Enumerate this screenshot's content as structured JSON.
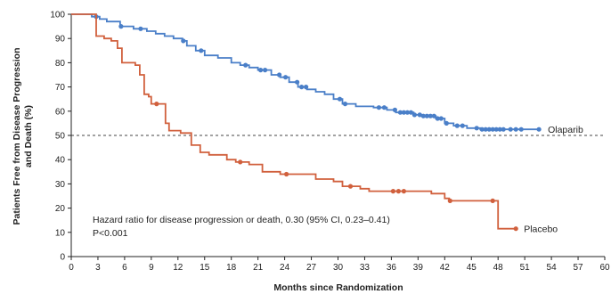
{
  "chart_data": {
    "type": "line",
    "step": true,
    "xlabel": "Months since Randomization",
    "ylabel_lines": [
      "Patients Free from Disease Progression",
      "and Death (%)"
    ],
    "xlim": [
      0,
      60
    ],
    "ylim": [
      0,
      100
    ],
    "x_ticks": [
      0,
      3,
      6,
      9,
      12,
      15,
      18,
      21,
      24,
      27,
      30,
      33,
      36,
      39,
      42,
      45,
      48,
      51,
      54,
      57,
      60
    ],
    "y_ticks": [
      0,
      10,
      20,
      30,
      40,
      50,
      60,
      70,
      80,
      90,
      100
    ],
    "reference_line": {
      "y": 50,
      "style": "dashed"
    },
    "annotation_lines": [
      "Hazard ratio for disease progression or death, 0.30 (95% CI, 0.23–0.41)",
      "P<0.001"
    ],
    "series": [
      {
        "name": "Olaparib",
        "color": "#4a7fc8",
        "points": [
          [
            0,
            100
          ],
          [
            2.2,
            100
          ],
          [
            2.3,
            99
          ],
          [
            3.2,
            98
          ],
          [
            4,
            97
          ],
          [
            5.5,
            95
          ],
          [
            7,
            94
          ],
          [
            8.5,
            93
          ],
          [
            9.5,
            92
          ],
          [
            10.5,
            91
          ],
          [
            11.5,
            90
          ],
          [
            12.5,
            89
          ],
          [
            13,
            87
          ],
          [
            14,
            85
          ],
          [
            15,
            83
          ],
          [
            16.5,
            82
          ],
          [
            18,
            80
          ],
          [
            19,
            79
          ],
          [
            20,
            78
          ],
          [
            21,
            77
          ],
          [
            22.5,
            75
          ],
          [
            23.5,
            74
          ],
          [
            24.5,
            72
          ],
          [
            25.5,
            70
          ],
          [
            26.5,
            69
          ],
          [
            27.5,
            68
          ],
          [
            28.5,
            67
          ],
          [
            29.5,
            65
          ],
          [
            30.5,
            63
          ],
          [
            32,
            62
          ],
          [
            34,
            61.5
          ],
          [
            35.5,
            60.5
          ],
          [
            36.5,
            59.5
          ],
          [
            38.5,
            58.5
          ],
          [
            39.5,
            58
          ],
          [
            41,
            57
          ],
          [
            42,
            55
          ],
          [
            43,
            54
          ],
          [
            44.5,
            53
          ],
          [
            46,
            52.5
          ],
          [
            47,
            52.5
          ],
          [
            52.5,
            52.5
          ]
        ],
        "censor_x": [
          2.8,
          5.6,
          7.8,
          12.6,
          14.6,
          19.6,
          21.3,
          21.8,
          23.4,
          24.1,
          25.4,
          25.9,
          26.4,
          30.2,
          30.8,
          34.6,
          35.2,
          36.4,
          37.0,
          37.4,
          37.8,
          38.2,
          38.6,
          39.2,
          39.6,
          40.0,
          40.4,
          40.8,
          41.2,
          41.6,
          42.2,
          43.4,
          44.0,
          45.6,
          46.2,
          46.6,
          47.0,
          47.4,
          47.8,
          48.2,
          48.6,
          49.4,
          50.0,
          50.6,
          52.6
        ],
        "label": "Olaparib",
        "label_at": [
          53.2,
          52.5
        ]
      },
      {
        "name": "Placebo",
        "color": "#d1603d",
        "points": [
          [
            0,
            100
          ],
          [
            2.7,
            100
          ],
          [
            2.8,
            91
          ],
          [
            3.7,
            90
          ],
          [
            4.5,
            89
          ],
          [
            5.2,
            86
          ],
          [
            5.7,
            80
          ],
          [
            7.2,
            79
          ],
          [
            7.7,
            75
          ],
          [
            8.2,
            67
          ],
          [
            8.7,
            66
          ],
          [
            9,
            63
          ],
          [
            10.6,
            55
          ],
          [
            11,
            52
          ],
          [
            12.3,
            51
          ],
          [
            13.5,
            46
          ],
          [
            14.5,
            43
          ],
          [
            15.5,
            42
          ],
          [
            17.5,
            40
          ],
          [
            18.5,
            39
          ],
          [
            20,
            38
          ],
          [
            21.5,
            35
          ],
          [
            23.5,
            34
          ],
          [
            27.5,
            32
          ],
          [
            29.5,
            31
          ],
          [
            30.5,
            29
          ],
          [
            31,
            29
          ],
          [
            32.5,
            28
          ],
          [
            33.5,
            27
          ],
          [
            36,
            27
          ],
          [
            40.5,
            26
          ],
          [
            42,
            24
          ],
          [
            42.5,
            23
          ],
          [
            47,
            23
          ],
          [
            48,
            11.5
          ],
          [
            50,
            11.5
          ]
        ],
        "censor_x": [
          9.6,
          19.0,
          24.2,
          31.4,
          36.2,
          36.8,
          37.4,
          42.6,
          47.4,
          50.0
        ],
        "label": "Placebo",
        "label_at": [
          50.5,
          11.5
        ]
      }
    ]
  }
}
